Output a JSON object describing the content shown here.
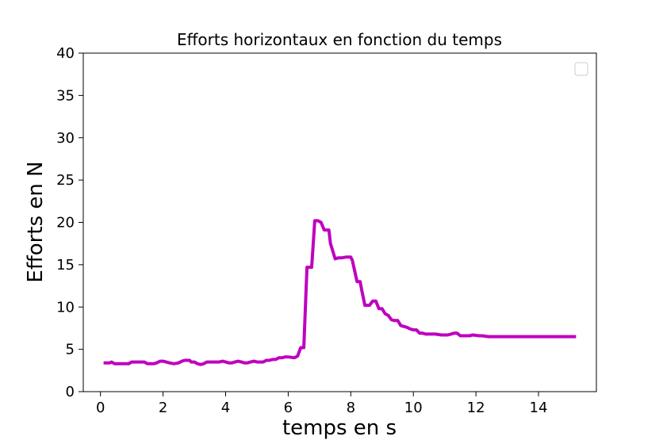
{
  "chart_data": {
    "type": "line",
    "title": "Efforts horizontaux en fonction du temps",
    "xlabel": "temps en s",
    "ylabel": "Efforts en N",
    "xlim": [
      -0.55,
      15.85
    ],
    "ylim": [
      0,
      40
    ],
    "xticks": [
      0,
      2,
      4,
      6,
      8,
      10,
      12,
      14
    ],
    "yticks": [
      0,
      5,
      10,
      15,
      20,
      25,
      30,
      35,
      40
    ],
    "grid": false,
    "legend": "top-right, empty",
    "colors": {
      "line": "#bf00bf",
      "axes": "#000000",
      "background": "#ffffff"
    },
    "series": [
      {
        "x": [
          0.1,
          0.3,
          0.35,
          0.45,
          0.55,
          0.75,
          0.9,
          1.0,
          1.1,
          1.3,
          1.4,
          1.5,
          1.7,
          1.8,
          1.9,
          2.0,
          2.1,
          2.2,
          2.35,
          2.5,
          2.6,
          2.7,
          2.85,
          2.9,
          3.0,
          3.1,
          3.2,
          3.3,
          3.4,
          3.5,
          3.7,
          3.8,
          3.9,
          4.0,
          4.1,
          4.2,
          4.3,
          4.4,
          4.5,
          4.6,
          4.7,
          4.8,
          4.9,
          5.0,
          5.1,
          5.2,
          5.3,
          5.4,
          5.5,
          5.6,
          5.7,
          5.8,
          5.9,
          6.0,
          6.2,
          6.3,
          6.4,
          6.5,
          6.55,
          6.6,
          6.75,
          6.85,
          6.95,
          7.05,
          7.15,
          7.3,
          7.35,
          7.5,
          7.6,
          7.7,
          7.85,
          8.0,
          8.05,
          8.2,
          8.3,
          8.35,
          8.45,
          8.6,
          8.7,
          8.8,
          8.9,
          9.0,
          9.1,
          9.2,
          9.3,
          9.4,
          9.5,
          9.6,
          9.7,
          9.8,
          9.9,
          10.0,
          10.1,
          10.2,
          10.3,
          10.4,
          10.5,
          10.7,
          10.9,
          11.0,
          11.1,
          11.2,
          11.3,
          11.4,
          11.5,
          11.6,
          11.8,
          11.9,
          12.1,
          12.2,
          12.4,
          12.5,
          12.6,
          12.8,
          13.0,
          13.2,
          13.5,
          13.8,
          14.0,
          14.3,
          14.6,
          14.9,
          15.2
        ],
        "y": [
          3.4,
          3.4,
          3.5,
          3.3,
          3.3,
          3.3,
          3.3,
          3.5,
          3.5,
          3.5,
          3.5,
          3.3,
          3.3,
          3.4,
          3.6,
          3.6,
          3.5,
          3.4,
          3.3,
          3.4,
          3.6,
          3.7,
          3.7,
          3.5,
          3.5,
          3.3,
          3.2,
          3.3,
          3.5,
          3.5,
          3.5,
          3.5,
          3.6,
          3.5,
          3.4,
          3.4,
          3.5,
          3.6,
          3.5,
          3.4,
          3.4,
          3.5,
          3.6,
          3.5,
          3.5,
          3.5,
          3.7,
          3.7,
          3.8,
          3.8,
          4.0,
          4.0,
          4.1,
          4.1,
          4.0,
          4.2,
          5.2,
          5.2,
          10.0,
          14.7,
          14.7,
          20.2,
          20.2,
          20.0,
          19.1,
          19.1,
          17.5,
          15.7,
          15.8,
          15.8,
          15.9,
          15.9,
          15.5,
          13.0,
          13.0,
          12.0,
          10.2,
          10.2,
          10.7,
          10.7,
          9.8,
          9.8,
          9.2,
          9.0,
          8.5,
          8.4,
          8.4,
          7.8,
          7.7,
          7.6,
          7.4,
          7.3,
          7.3,
          6.9,
          6.9,
          6.8,
          6.8,
          6.8,
          6.7,
          6.7,
          6.7,
          6.8,
          6.9,
          6.9,
          6.6,
          6.6,
          6.6,
          6.7,
          6.6,
          6.6,
          6.5,
          6.5,
          6.5,
          6.5,
          6.5,
          6.5,
          6.5,
          6.5,
          6.5,
          6.5,
          6.5,
          6.5,
          6.5
        ]
      }
    ]
  }
}
